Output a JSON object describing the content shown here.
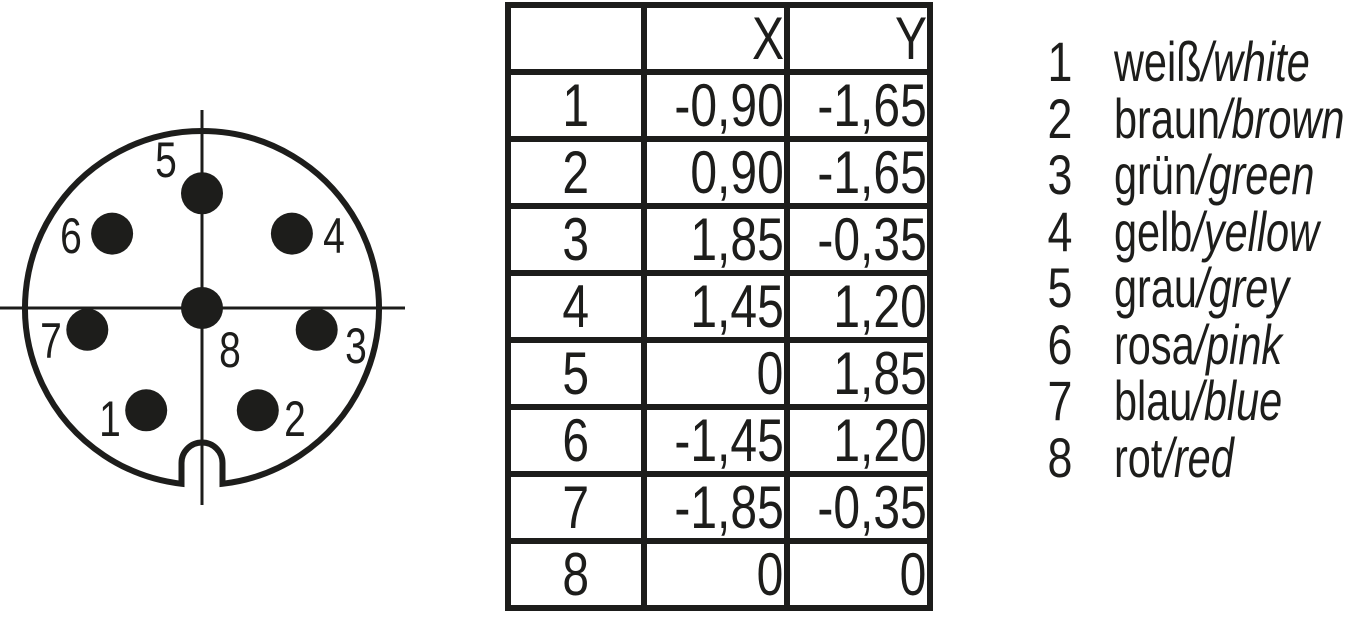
{
  "colors": {
    "ink": "#1d1d1b",
    "background": "#ffffff"
  },
  "table": {
    "headers": {
      "pin": "",
      "x": "X",
      "y": "Y"
    },
    "rows": [
      {
        "pin": "1",
        "x": "-0,90",
        "y": "-1,65"
      },
      {
        "pin": "2",
        "x": "0,90",
        "y": "-1,65"
      },
      {
        "pin": "3",
        "x": "1,85",
        "y": "-0,35"
      },
      {
        "pin": "4",
        "x": "1,45",
        "y": "1,20"
      },
      {
        "pin": "5",
        "x": "0",
        "y": "1,85"
      },
      {
        "pin": "6",
        "x": "-1,45",
        "y": "1,20"
      },
      {
        "pin": "7",
        "x": "-1,85",
        "y": "-0,35"
      },
      {
        "pin": "8",
        "x": "0",
        "y": "0"
      }
    ]
  },
  "legend": {
    "separator": "/",
    "items": [
      {
        "pin": "1",
        "de": "weiß",
        "en": "white"
      },
      {
        "pin": "2",
        "de": "braun",
        "en": "brown"
      },
      {
        "pin": "3",
        "de": "grün",
        "en": "green"
      },
      {
        "pin": "4",
        "de": "gelb",
        "en": "yellow"
      },
      {
        "pin": "5",
        "de": "grau",
        "en": "grey"
      },
      {
        "pin": "6",
        "de": "rosa",
        "en": "pink"
      },
      {
        "pin": "7",
        "de": "blau",
        "en": "blue"
      },
      {
        "pin": "8",
        "de": "rot",
        "en": "red"
      }
    ]
  }
}
